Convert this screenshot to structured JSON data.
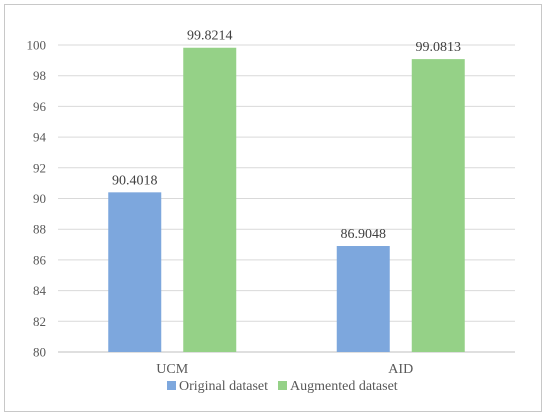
{
  "chart_data": {
    "type": "bar",
    "categories": [
      "UCM",
      "AID"
    ],
    "series": [
      {
        "name": "Original dataset",
        "color": "#7da7dd",
        "values": [
          90.4018,
          86.9048
        ]
      },
      {
        "name": "Augmented dataset",
        "color": "#95d187",
        "values": [
          99.8214,
          99.0813
        ]
      }
    ],
    "ylim": [
      80,
      100
    ],
    "yticks": [
      80,
      82,
      84,
      86,
      88,
      90,
      92,
      94,
      96,
      98,
      100
    ],
    "grid": true,
    "legend": "bottom",
    "data_labels": [
      "90.4018",
      "99.8214",
      "86.9048",
      "99.0813"
    ]
  }
}
